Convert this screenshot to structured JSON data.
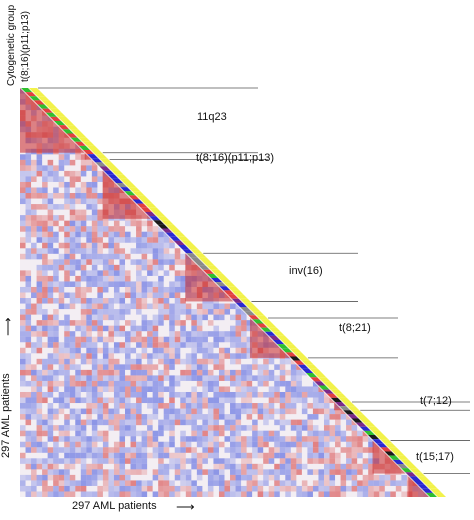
{
  "chart_data": {
    "type": "heatmap",
    "title": "",
    "matrix_shape": "lower-triangular",
    "n_patients": 297,
    "colormap": {
      "low": "#6f7fe0",
      "mid": "#ffffff",
      "high": "#d23b3b"
    },
    "annotation_band_colors": [
      "#2fbf2f",
      "#2a2ad0",
      "#e24040",
      "#8a8a8a",
      "#1a1a1a",
      "#7b2a8a",
      "#f2f24a"
    ],
    "column_header": {
      "title": "Cytogenetic group",
      "subtitle": "t(8;16)(p11;p13)"
    },
    "xlabel": "297 AML patients",
    "ylabel": "297 AML patients",
    "groups": [
      {
        "label": "11q23",
        "start": 0,
        "end": 47
      },
      {
        "label": "t(8;16)(p11;p13)",
        "start": 47,
        "end": 52
      },
      {
        "label": "inv(16)",
        "start": 120,
        "end": 155
      },
      {
        "label": "t(8;21)",
        "start": 167,
        "end": 196
      },
      {
        "label": "t(7;12)",
        "start": 228,
        "end": 234
      },
      {
        "label": "t(15;17)",
        "start": 256,
        "end": 280
      }
    ]
  }
}
